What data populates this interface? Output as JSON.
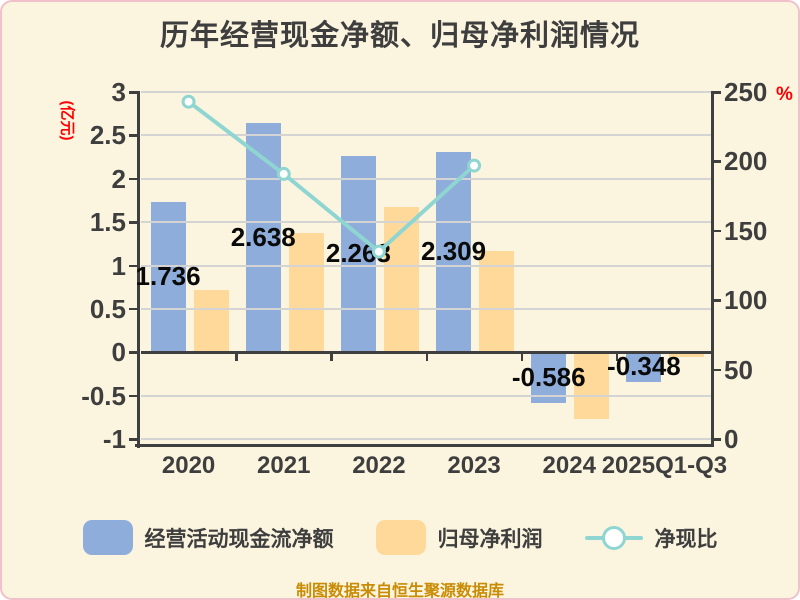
{
  "chart_data": {
    "type": "bar+line combo",
    "title": "历年经营现金净额、归母净利润情况",
    "categories": [
      "2020",
      "2021",
      "2022",
      "2023",
      "2024",
      "2025Q1-Q3"
    ],
    "series": [
      {
        "name": "经营活动现金流净额",
        "type": "bar",
        "axis": "left",
        "color": "#8EADDB",
        "values": [
          1.736,
          2.638,
          2.263,
          2.309,
          -0.586,
          -0.348
        ],
        "labels": [
          "1.736",
          "2.638",
          "2.263",
          "2.309",
          "-0.586",
          "-0.348"
        ]
      },
      {
        "name": "归母净利润",
        "type": "bar",
        "axis": "left",
        "color": "#FFD999",
        "values": [
          0.72,
          1.38,
          1.67,
          1.17,
          -0.77,
          -0.06
        ],
        "labels": []
      },
      {
        "name": "净现比",
        "type": "line",
        "axis": "right",
        "color": "#8FD5D1",
        "marker_fill": "#FFFFFF",
        "values": [
          243,
          191,
          135,
          197,
          null,
          null
        ]
      }
    ],
    "left_axis": {
      "label": "(亿元)",
      "label_color": "#FF0000",
      "min": -1,
      "max": 3,
      "ticks": [
        "3",
        "2.5",
        "2",
        "1.5",
        "1",
        "0.5",
        "0",
        "-0.5",
        "-1"
      ]
    },
    "right_axis": {
      "label": "%",
      "label_color": "#FF0000",
      "min": 0,
      "max": 250,
      "ticks": [
        "250",
        "200",
        "150",
        "100",
        "50",
        "0"
      ]
    },
    "grid": "horizontal, light gray, drawn above bars",
    "legend_position": "bottom",
    "caption": "制图数据来自恒生聚源数据库"
  },
  "colors": {
    "background": "#FBF5DF",
    "frame_border": "#F2C0CA",
    "axis": "#3F3F3F",
    "gridline": "#D4D4D4",
    "title_text": "#3E3E3E",
    "bar_label_text": "#0A0A0A",
    "caption_text": "#C98C06"
  }
}
